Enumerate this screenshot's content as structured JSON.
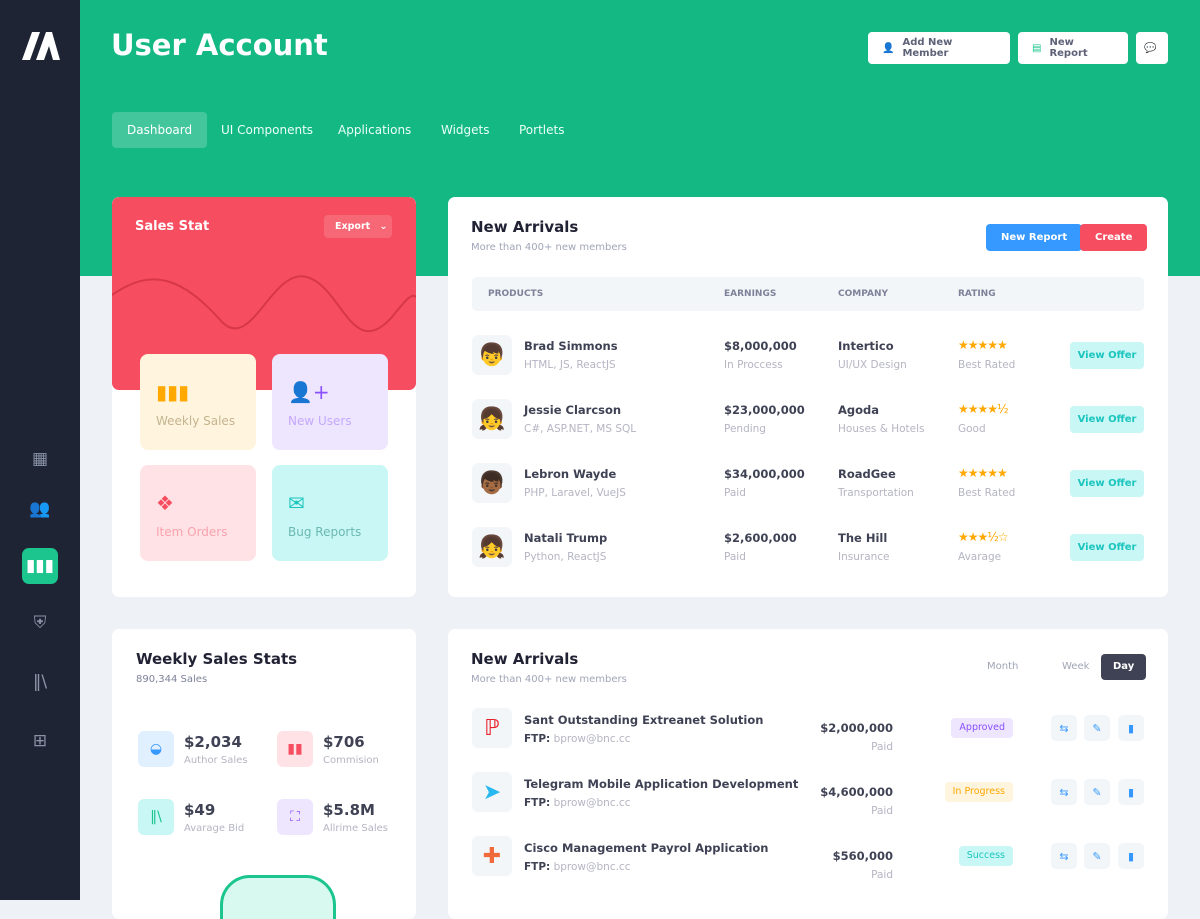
{
  "header": {
    "title": "User Account",
    "add_member": "Add New Member",
    "new_report": "New Report"
  },
  "nav": [
    {
      "label": "Dashboard",
      "active": true
    },
    {
      "label": "UI Components"
    },
    {
      "label": "Applications"
    },
    {
      "label": "Widgets"
    },
    {
      "label": "Portlets"
    }
  ],
  "sidebar": {
    "icons": [
      "dashboard-icon",
      "users-icon",
      "chart-icon",
      "shield-icon",
      "library-icon",
      "file-add-icon"
    ],
    "active": "chart-icon"
  },
  "sales_stat": {
    "title": "Sales Stat",
    "export": "Export",
    "tiles": [
      {
        "label": "Weekly Sales",
        "icon": "bar-chart-icon"
      },
      {
        "label": "New Users",
        "icon": "user-add-icon"
      },
      {
        "label": "Item Orders",
        "icon": "diamonds-icon"
      },
      {
        "label": "Bug Reports",
        "icon": "mail-icon"
      }
    ]
  },
  "arrivals": {
    "title": "New Arrivals",
    "subtitle": "More than 400+ new members",
    "new_report": "New Report",
    "create": "Create",
    "columns": [
      "PRODUCTS",
      "EARNINGS",
      "COMPANY",
      "RATING"
    ],
    "rows": [
      {
        "name": "Brad Simmons",
        "skills": "HTML, JS, ReactJS",
        "earnings": "$8,000,000",
        "status": "In Proccess",
        "company": "Intertico",
        "field": "UI/UX Design",
        "stars": "★★★★★",
        "rating": 5,
        "rating_label": "Best Rated",
        "action": "View Offer",
        "avatar": "👦"
      },
      {
        "name": "Jessie Clarcson",
        "skills": "C#, ASP.NET, MS SQL",
        "earnings": "$23,000,000",
        "status": "Pending",
        "company": "Agoda",
        "field": "Houses & Hotels",
        "stars": "★★★★½",
        "rating": 4.5,
        "rating_label": "Good",
        "action": "View Offer",
        "avatar": "👧"
      },
      {
        "name": "Lebron Wayde",
        "skills": "PHP, Laravel, VueJS",
        "earnings": "$34,000,000",
        "status": "Paid",
        "company": "RoadGee",
        "field": "Transportation",
        "stars": "★★★★★",
        "rating": 5,
        "rating_label": "Best Rated",
        "action": "View Offer",
        "avatar": "👦🏾"
      },
      {
        "name": "Natali Trump",
        "skills": "Python,  ReactJS",
        "earnings": "$2,600,000",
        "status": "Paid",
        "company": "The Hill",
        "field": "Insurance",
        "stars": "★★★½☆",
        "rating": 3.5,
        "rating_label": "Avarage",
        "action": "View Offer",
        "avatar": "👧"
      }
    ]
  },
  "weekly": {
    "title": "Weekly Sales Stats",
    "subtitle": "890,344 Sales",
    "stats": [
      {
        "value": "$2,034",
        "label": "Author Sales",
        "icon": "basket-icon",
        "bg": "#e1f0ff",
        "fg": "#3699ff"
      },
      {
        "value": "$706",
        "label": "Commision",
        "icon": "bar-chart-icon",
        "bg": "#ffe2e5",
        "fg": "#f64e60"
      },
      {
        "value": "$49",
        "label": "Avarage Bid",
        "icon": "library-icon",
        "bg": "#c9f7f5",
        "fg": "#1bc58d"
      },
      {
        "value": "$5.8M",
        "label": "Allrime Sales",
        "icon": "frame-icon",
        "bg": "#eee5ff",
        "fg": "#8950fc"
      }
    ]
  },
  "projects": {
    "title": "New Arrivals",
    "subtitle": "More than 400+ new members",
    "periods": [
      "Month",
      "Week",
      "Day"
    ],
    "active_period": "Day",
    "ftp_label": "FTP:",
    "rows": [
      {
        "name": "Sant Outstanding Extreanet Solution",
        "ftp": "bprow@bnc.cc",
        "amount": "$2,000,000",
        "paid": "Paid",
        "status": "Approved",
        "status_bg": "#eee5ff",
        "status_fg": "#8950fc"
      },
      {
        "name": "Telegram Mobile Application Development",
        "ftp": "bprow@bnc.cc",
        "amount": "$4,600,000",
        "paid": "Paid",
        "status": "In Progress",
        "status_bg": "#fff4de",
        "status_fg": "#ffa800"
      },
      {
        "name": "Cisco Management Payrol Application",
        "ftp": "bprow@bnc.cc",
        "amount": "$560,000",
        "paid": "Paid",
        "status": "Success",
        "status_bg": "#c9f7f5",
        "status_fg": "#1bc5bd"
      }
    ]
  },
  "colors": {
    "primary": "#14b883",
    "danger": "#f64e60",
    "info": "#3699ff",
    "sidebar": "#1e2433"
  }
}
